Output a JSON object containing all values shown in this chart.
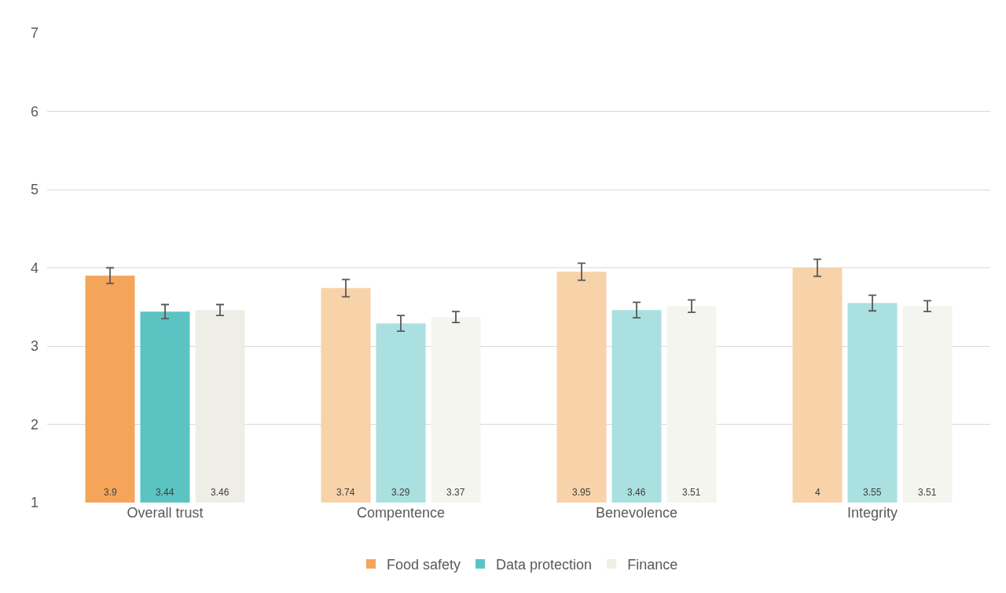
{
  "chart_data": {
    "type": "bar",
    "categories": [
      "Overall trust",
      "Compentence",
      "Benevolence",
      "Integrity"
    ],
    "series": [
      {
        "name": "Food safety",
        "color": "#f4a55a",
        "colors": [
          "#f4a55a",
          "#f8d2a9",
          "#f8d2a9",
          "#f8d2a9"
        ],
        "values": [
          3.9,
          3.74,
          3.95,
          4
        ],
        "errors": [
          0.1,
          0.11,
          0.11,
          0.11
        ]
      },
      {
        "name": "Data protection",
        "color": "#5bc4c3",
        "colors": [
          "#5bc4c3",
          "#aae0e0",
          "#aae0e0",
          "#aae0e0"
        ],
        "values": [
          3.44,
          3.29,
          3.46,
          3.55
        ],
        "errors": [
          0.09,
          0.1,
          0.1,
          0.1
        ]
      },
      {
        "name": "Finance",
        "color": "#efeee6",
        "colors": [
          "#efeee6",
          "#f5f5f0",
          "#f5f5f0",
          "#f5f5f0"
        ],
        "values": [
          3.46,
          3.37,
          3.51,
          3.51
        ],
        "errors": [
          0.07,
          0.07,
          0.08,
          0.07
        ]
      }
    ],
    "ylim": [
      1,
      7
    ],
    "yticks": [
      1,
      2,
      3,
      4,
      5,
      6,
      7
    ],
    "grid": "y",
    "legend": "bottom",
    "data_labels": true
  }
}
